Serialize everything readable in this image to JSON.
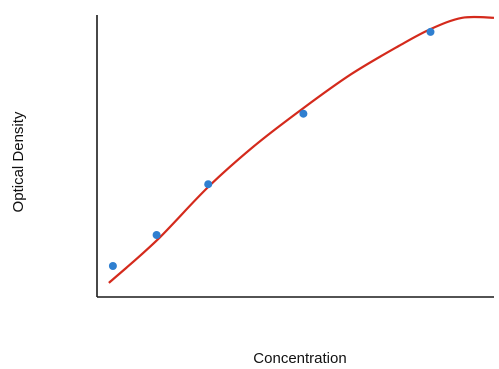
{
  "chart_data": {
    "type": "scatter",
    "xlabel": "Concentration",
    "ylabel": "Optical Density",
    "xlim": [
      0,
      10
    ],
    "ylim": [
      0,
      10
    ],
    "ticks_shown": false,
    "grid": false,
    "points": [
      {
        "x": 0.4,
        "y": 1.1
      },
      {
        "x": 1.5,
        "y": 2.2
      },
      {
        "x": 2.8,
        "y": 4.0
      },
      {
        "x": 5.2,
        "y": 6.5
      },
      {
        "x": 8.4,
        "y": 9.4
      }
    ],
    "fit_curve": [
      {
        "x": 0.3,
        "y": 0.5
      },
      {
        "x": 1.5,
        "y": 2.0
      },
      {
        "x": 2.8,
        "y": 3.9
      },
      {
        "x": 4.0,
        "y": 5.4
      },
      {
        "x": 5.2,
        "y": 6.7
      },
      {
        "x": 6.4,
        "y": 7.9
      },
      {
        "x": 7.6,
        "y": 8.9
      },
      {
        "x": 8.4,
        "y": 9.5
      },
      {
        "x": 9.2,
        "y": 9.9
      },
      {
        "x": 10.0,
        "y": 9.9
      }
    ],
    "colors": {
      "points": "#2f7fd0",
      "curve": "#d42a1c",
      "axis": "#1a1a1a"
    }
  }
}
